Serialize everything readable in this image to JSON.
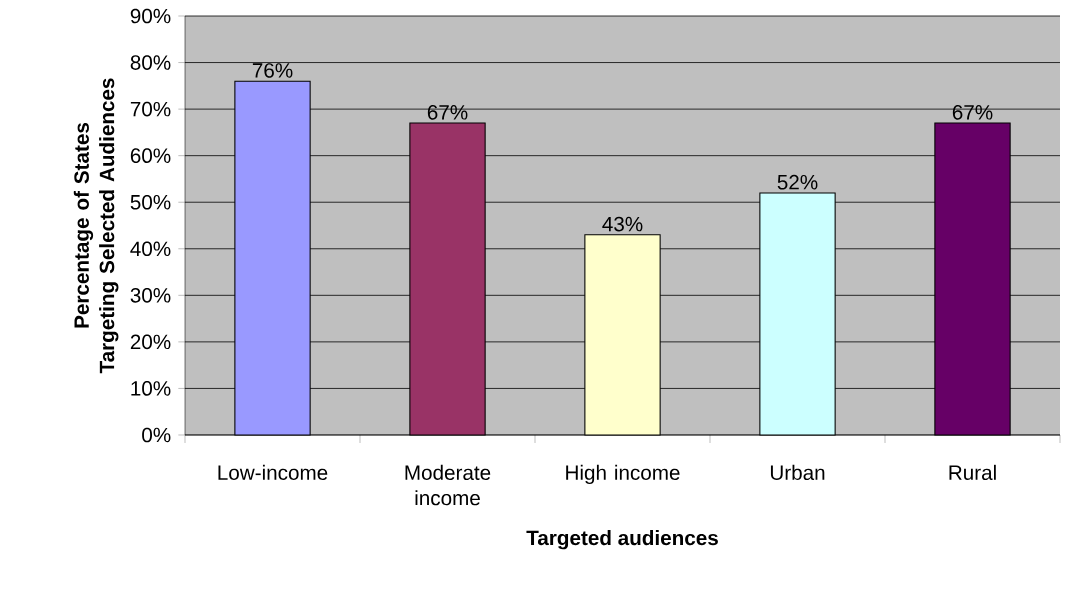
{
  "chart_data": {
    "type": "bar",
    "xlabel": "Targeted audiences",
    "ylabel": "Percentage of States Targeting Selected Audiences",
    "categories": [
      "Low-income",
      "Moderate income",
      "High income",
      "Urban",
      "Rural"
    ],
    "values": [
      76,
      67,
      43,
      52,
      67
    ],
    "colors": [
      "#9999ff",
      "#993366",
      "#ffffcc",
      "#ccffff",
      "#660066"
    ],
    "value_labels": [
      "76%",
      "67%",
      "43%",
      "52%",
      "67%"
    ],
    "ylim": [
      0,
      90
    ],
    "yticks": [
      {
        "value": 0,
        "label": "0%"
      },
      {
        "value": 10,
        "label": "10%"
      },
      {
        "value": 20,
        "label": "20%"
      },
      {
        "value": 30,
        "label": "30%"
      },
      {
        "value": 40,
        "label": "40%"
      },
      {
        "value": 50,
        "label": "50%"
      },
      {
        "value": 60,
        "label": "60%"
      },
      {
        "value": 70,
        "label": "70%"
      },
      {
        "value": 80,
        "label": "80%"
      },
      {
        "value": 90,
        "label": "90%"
      }
    ],
    "grid": "y"
  }
}
